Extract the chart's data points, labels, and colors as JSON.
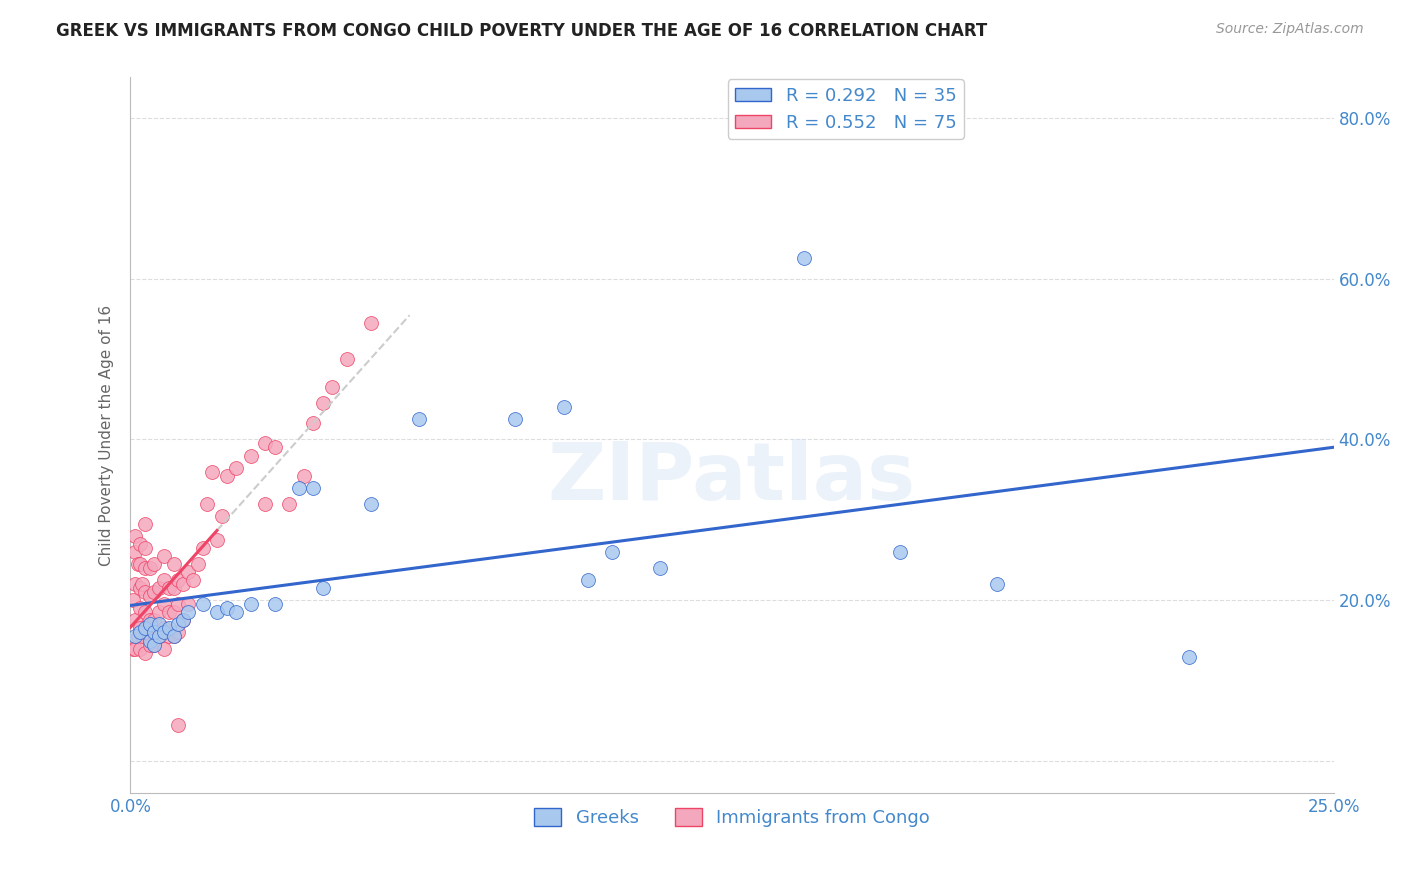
{
  "title": "GREEK VS IMMIGRANTS FROM CONGO CHILD POVERTY UNDER THE AGE OF 16 CORRELATION CHART",
  "source": "Source: ZipAtlas.com",
  "ylabel": "Child Poverty Under the Age of 16",
  "xlim": [
    0.0,
    0.25
  ],
  "ylim": [
    -0.04,
    0.85
  ],
  "xticks": [
    0.0,
    0.05,
    0.1,
    0.15,
    0.2,
    0.25
  ],
  "yticks": [
    0.0,
    0.2,
    0.4,
    0.6,
    0.8
  ],
  "ytick_labels": [
    "",
    "20.0%",
    "40.0%",
    "60.0%",
    "80.0%"
  ],
  "xtick_labels": [
    "0.0%",
    "",
    "",
    "",
    "",
    "25.0%"
  ],
  "greek_R": 0.292,
  "greek_N": 35,
  "congo_R": 0.552,
  "congo_N": 75,
  "greek_color": "#A8C8EE",
  "congo_color": "#F4A8BE",
  "trend_greek_color": "#3366CC",
  "trend_congo_color": "#EE4466",
  "trend_congo_dash_color": "#CCCCCC",
  "background_color": "#FFFFFF",
  "axis_color": "#4488CC",
  "grid_color": "#DDDDDD",
  "title_color": "#222222",
  "source_color": "#999999",
  "legend_label_greek": "Greeks",
  "legend_label_congo": "Immigrants from Congo",
  "watermark": "ZIPatlas",
  "greek_x": [
    0.001,
    0.002,
    0.003,
    0.004,
    0.004,
    0.005,
    0.005,
    0.006,
    0.006,
    0.007,
    0.008,
    0.009,
    0.01,
    0.011,
    0.012,
    0.015,
    0.018,
    0.02,
    0.022,
    0.025,
    0.03,
    0.035,
    0.038,
    0.04,
    0.05,
    0.06,
    0.08,
    0.09,
    0.095,
    0.1,
    0.11,
    0.14,
    0.16,
    0.18,
    0.22
  ],
  "greek_y": [
    0.155,
    0.16,
    0.165,
    0.15,
    0.17,
    0.145,
    0.16,
    0.155,
    0.17,
    0.16,
    0.165,
    0.155,
    0.17,
    0.175,
    0.185,
    0.195,
    0.185,
    0.19,
    0.185,
    0.195,
    0.195,
    0.34,
    0.34,
    0.215,
    0.32,
    0.425,
    0.425,
    0.44,
    0.225,
    0.26,
    0.24,
    0.625,
    0.26,
    0.22,
    0.13
  ],
  "congo_x": [
    0.0005,
    0.0005,
    0.001,
    0.001,
    0.001,
    0.001,
    0.001,
    0.0015,
    0.0015,
    0.002,
    0.002,
    0.002,
    0.002,
    0.002,
    0.002,
    0.0025,
    0.0025,
    0.003,
    0.003,
    0.003,
    0.003,
    0.003,
    0.003,
    0.003,
    0.004,
    0.004,
    0.004,
    0.004,
    0.005,
    0.005,
    0.005,
    0.005,
    0.006,
    0.006,
    0.006,
    0.007,
    0.007,
    0.007,
    0.007,
    0.007,
    0.008,
    0.008,
    0.008,
    0.009,
    0.009,
    0.009,
    0.009,
    0.01,
    0.01,
    0.01,
    0.011,
    0.011,
    0.012,
    0.012,
    0.013,
    0.014,
    0.015,
    0.016,
    0.017,
    0.018,
    0.019,
    0.02,
    0.022,
    0.025,
    0.028,
    0.03,
    0.033,
    0.036,
    0.038,
    0.04,
    0.042,
    0.045,
    0.05,
    0.028,
    0.01
  ],
  "congo_y": [
    0.14,
    0.2,
    0.14,
    0.175,
    0.22,
    0.26,
    0.28,
    0.155,
    0.245,
    0.14,
    0.165,
    0.19,
    0.215,
    0.245,
    0.27,
    0.155,
    0.22,
    0.135,
    0.16,
    0.185,
    0.21,
    0.24,
    0.265,
    0.295,
    0.145,
    0.175,
    0.205,
    0.24,
    0.145,
    0.175,
    0.21,
    0.245,
    0.155,
    0.185,
    0.215,
    0.14,
    0.165,
    0.195,
    0.225,
    0.255,
    0.155,
    0.185,
    0.215,
    0.155,
    0.185,
    0.215,
    0.245,
    0.16,
    0.195,
    0.225,
    0.175,
    0.22,
    0.195,
    0.235,
    0.225,
    0.245,
    0.265,
    0.32,
    0.36,
    0.275,
    0.305,
    0.355,
    0.365,
    0.38,
    0.395,
    0.39,
    0.32,
    0.355,
    0.42,
    0.445,
    0.465,
    0.5,
    0.545,
    0.32,
    0.045
  ]
}
